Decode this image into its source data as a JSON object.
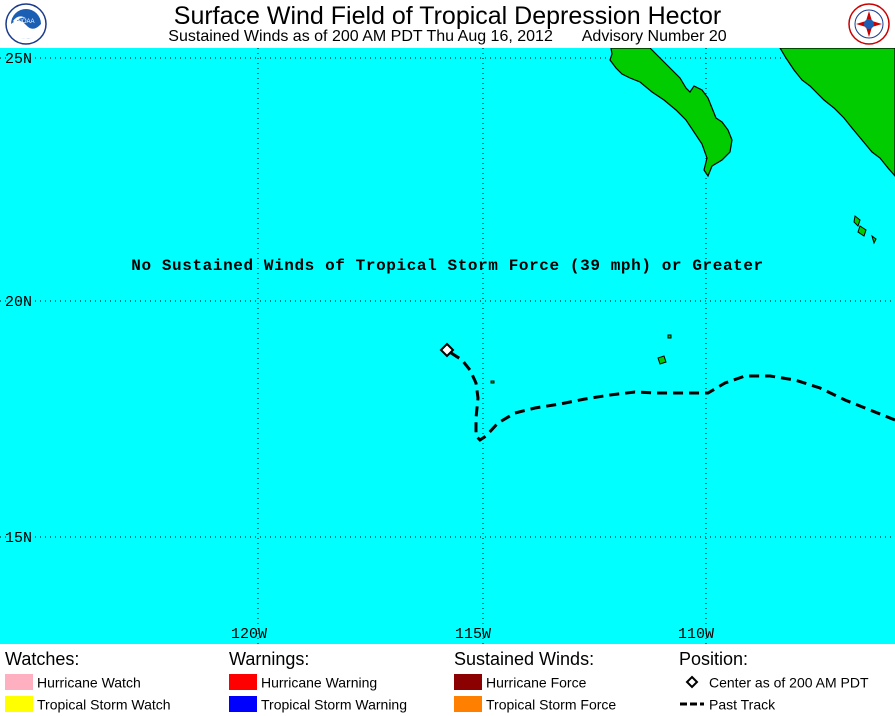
{
  "header": {
    "title": "Surface Wind Field of Tropical Depression Hector",
    "subtitle_time": "Sustained Winds as of 200 AM PDT Thu Aug 16, 2012",
    "subtitle_advisory": "Advisory Number 20",
    "logo_left": "noaa-logo",
    "logo_right": "nws-logo"
  },
  "map": {
    "ocean_color": "#00ffff",
    "land_color": "#00cc00",
    "lat_labels": [
      "25N",
      "20N",
      "15N"
    ],
    "lon_labels": [
      "120W",
      "115W",
      "110W"
    ],
    "message": "No Sustained Winds of Tropical Storm Force (39 mph) or Greater",
    "storm_center": {
      "lat": 19.0,
      "lon": -115.8
    }
  },
  "legend": {
    "watches": {
      "heading": "Watches:",
      "items": [
        {
          "label": "Hurricane Watch",
          "color": "#ffb0c0"
        },
        {
          "label": "Tropical Storm Watch",
          "color": "#ffff00"
        }
      ]
    },
    "warnings": {
      "heading": "Warnings:",
      "items": [
        {
          "label": "Hurricane Warning",
          "color": "#ff0000"
        },
        {
          "label": "Tropical Storm Warning",
          "color": "#0000ff"
        }
      ]
    },
    "winds": {
      "heading": "Sustained Winds:",
      "items": [
        {
          "label": "Hurricane Force",
          "color": "#8b0000"
        },
        {
          "label": "Tropical Storm Force",
          "color": "#ff8000"
        }
      ]
    },
    "position": {
      "heading": "Position:",
      "items": [
        {
          "label": "Center as of 200 AM PDT",
          "icon": "diamond-icon"
        },
        {
          "label": "Past Track",
          "icon": "dashed-line-icon"
        }
      ]
    }
  }
}
